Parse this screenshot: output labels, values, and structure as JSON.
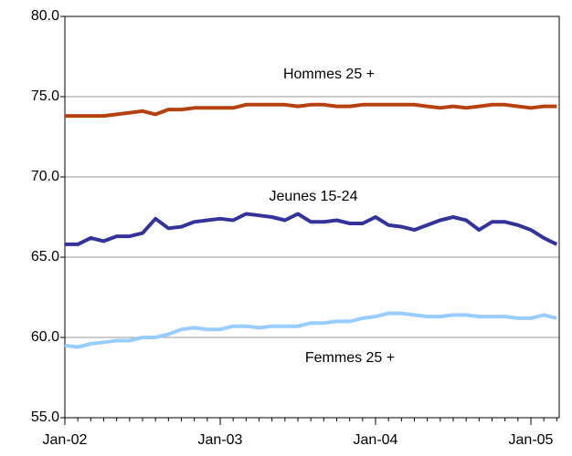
{
  "chart_data": {
    "type": "line",
    "categories": [
      "Jan-02",
      null,
      null,
      null,
      null,
      null,
      null,
      null,
      null,
      null,
      null,
      null,
      "Jan-03",
      null,
      null,
      null,
      null,
      null,
      null,
      null,
      null,
      null,
      null,
      null,
      "Jan-04",
      null,
      null,
      null,
      null,
      null,
      null,
      null,
      null,
      null,
      null,
      null,
      "Jan-05",
      null,
      null
    ],
    "series": [
      {
        "name": "Hommes 25 +",
        "color": "#b5410f",
        "values": [
          73.8,
          73.8,
          73.8,
          73.8,
          73.9,
          74.0,
          74.1,
          73.9,
          74.2,
          74.2,
          74.3,
          74.3,
          74.3,
          74.3,
          74.5,
          74.5,
          74.5,
          74.5,
          74.4,
          74.5,
          74.5,
          74.4,
          74.4,
          74.5,
          74.5,
          74.5,
          74.5,
          74.5,
          74.4,
          74.3,
          74.4,
          74.3,
          74.4,
          74.5,
          74.5,
          74.4,
          74.3,
          74.4,
          74.4
        ]
      },
      {
        "name": "Jeunes 15-24",
        "color": "#333399",
        "values": [
          65.8,
          65.8,
          66.2,
          66.0,
          66.3,
          66.3,
          66.5,
          67.4,
          66.8,
          66.9,
          67.2,
          67.3,
          67.4,
          67.3,
          67.7,
          67.6,
          67.5,
          67.3,
          67.7,
          67.2,
          67.2,
          67.3,
          67.1,
          67.1,
          67.5,
          67.0,
          66.9,
          66.7,
          67.0,
          67.3,
          67.5,
          67.3,
          66.7,
          67.2,
          67.2,
          67.0,
          66.7,
          66.2,
          65.8
        ]
      },
      {
        "name": "Femmes  25 +",
        "color": "#99ccff",
        "values": [
          59.5,
          59.4,
          59.6,
          59.7,
          59.8,
          59.8,
          60.0,
          60.0,
          60.2,
          60.5,
          60.6,
          60.5,
          60.5,
          60.7,
          60.7,
          60.6,
          60.7,
          60.7,
          60.7,
          60.9,
          60.9,
          61.0,
          61.0,
          61.2,
          61.3,
          61.5,
          61.5,
          61.4,
          61.3,
          61.3,
          61.4,
          61.4,
          61.3,
          61.3,
          61.3,
          61.2,
          61.2,
          61.4,
          61.2
        ]
      }
    ],
    "ylim": [
      55,
      80
    ],
    "yticks": [
      {
        "value": 55,
        "label": "55.0"
      },
      {
        "value": 60,
        "label": "60.0"
      },
      {
        "value": 65,
        "label": "65.0"
      },
      {
        "value": 70,
        "label": "70.0"
      },
      {
        "value": 75,
        "label": "75.0"
      },
      {
        "value": 80,
        "label": "80.0"
      }
    ],
    "grid": true
  }
}
